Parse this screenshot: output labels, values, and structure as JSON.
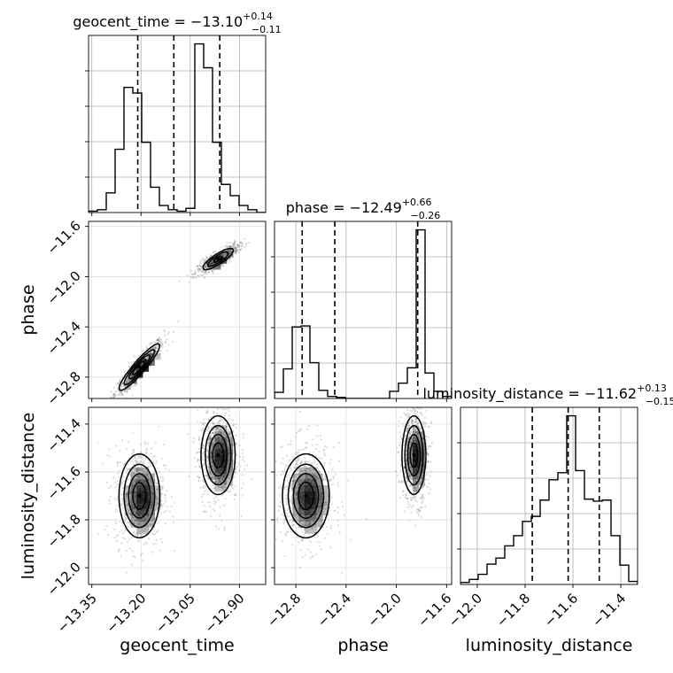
{
  "chart_data": {
    "type": "corner",
    "parameters": [
      "geocent_time",
      "phase",
      "luminosity_distance"
    ],
    "axis_labels": [
      "geocent_time",
      "phase",
      "luminosity_distance"
    ],
    "ranges": {
      "geocent_time": [
        -13.36,
        -12.82
      ],
      "phase": [
        -12.97,
        -11.56
      ],
      "luminosity_distance": [
        -12.07,
        -11.33
      ]
    },
    "ticks": {
      "geocent_time": [
        -13.35,
        -13.2,
        -13.05,
        -12.9
      ],
      "phase": [
        -12.8,
        -12.4,
        -12.0,
        -11.6
      ],
      "luminosity_distance": [
        -12.0,
        -11.8,
        -11.6,
        -11.4
      ]
    },
    "tick_labels": {
      "geocent_time": [
        "−13.35",
        "−13.20",
        "−13.05",
        "−12.90"
      ],
      "phase": [
        "−12.8",
        "−12.4",
        "−12.0",
        "−11.6"
      ],
      "luminosity_distance": [
        "−12.0",
        "−11.8",
        "−11.6",
        "−11.4"
      ]
    },
    "titles": [
      {
        "name": "geocent_time",
        "text": "geocent_time = −13.10",
        "sup": "+0.14",
        "sub": "−0.11"
      },
      {
        "name": "phase",
        "text": "phase = −12.49",
        "sup": "+0.66",
        "sub": "−0.26"
      },
      {
        "name": "luminosity_distance",
        "text": "luminosity_distance = −11.62",
        "sup": "+0.13",
        "sub": "−0.15"
      }
    ],
    "quantiles": {
      "geocent_time": [
        -13.21,
        -13.1,
        -12.96
      ],
      "phase": [
        -12.75,
        -12.49,
        -11.83
      ],
      "luminosity_distance": [
        -11.77,
        -11.62,
        -11.49
      ]
    },
    "histograms": {
      "geocent_time": {
        "edges": [
          -13.36,
          -13.333,
          -13.306,
          -13.279,
          -13.252,
          -13.225,
          -13.198,
          -13.171,
          -13.144,
          -13.117,
          -13.09,
          -13.063,
          -13.036,
          -13.009,
          -12.982,
          -12.955,
          -12.928,
          -12.901,
          -12.874,
          -12.847,
          -12.82
        ],
        "counts": [
          1,
          2,
          14,
          45,
          89,
          85,
          50,
          18,
          5,
          2,
          1,
          3,
          120,
          103,
          50,
          20,
          12,
          5,
          2,
          0
        ]
      },
      "phase": {
        "edges": [
          -12.97,
          -12.8995,
          -12.829,
          -12.7585,
          -12.688,
          -12.6175,
          -12.547,
          -12.4765,
          -12.406,
          -12.3355,
          -12.265,
          -12.1945,
          -12.124,
          -12.0535,
          -11.983,
          -11.9125,
          -11.842,
          -11.7715,
          -11.701,
          -11.6305,
          -11.56
        ],
        "counts": [
          6,
          29,
          70,
          71,
          35,
          8,
          2,
          1,
          0,
          0,
          0,
          0,
          0,
          7,
          15,
          30,
          165,
          25,
          7,
          2
        ]
      },
      "luminosity_distance": {
        "edges": [
          -12.07,
          -12.033,
          -11.996,
          -11.959,
          -11.922,
          -11.885,
          -11.848,
          -11.811,
          -11.774,
          -11.737,
          -11.7,
          -11.663,
          -11.626,
          -11.589,
          -11.552,
          -11.515,
          -11.478,
          -11.441,
          -11.404,
          -11.367,
          -11.33
        ],
        "counts": [
          2,
          5,
          10,
          20,
          26,
          38,
          48,
          62,
          67,
          83,
          103,
          110,
          166,
          112,
          84,
          82,
          83,
          48,
          19,
          3
        ]
      }
    },
    "clusters": [
      {
        "gt": -13.205,
        "ph": -12.72,
        "ld": -11.7,
        "w": 0.5,
        "sgt": 0.03,
        "sph": 0.09,
        "sld": 0.085,
        "rho_gt_ph": 0.93
      },
      {
        "gt": -12.965,
        "ph": -11.86,
        "ld": -11.53,
        "w": 0.5,
        "sgt": 0.025,
        "sph": 0.045,
        "sld": 0.08,
        "rho_gt_ph": 0.85
      }
    ],
    "grid": true
  }
}
